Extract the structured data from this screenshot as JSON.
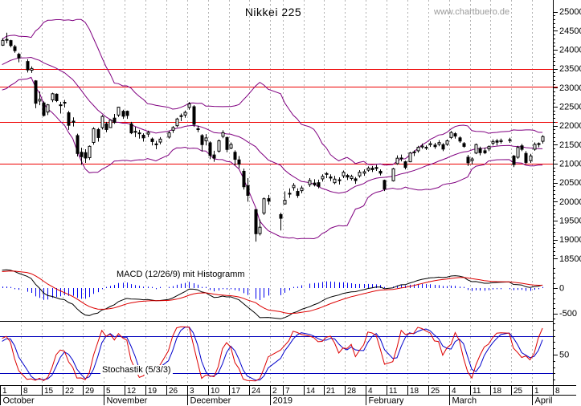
{
  "title": "Nikkei 225",
  "watermark": "www.chartbuero.de",
  "chart_data": {
    "type": "candlestick",
    "title": "Nikkei 225",
    "legend_position": "none",
    "grid": "weekly-vertical-dashed",
    "colors": {
      "grid": "#b4b4b4",
      "level_line": "#ee0000",
      "bollinger": "#800080",
      "candle_up_fill": "#ffffff",
      "candle_down_fill": "#000000",
      "candle_outline": "#000000",
      "macd_line": "#000000",
      "macd_signal": "#dd0000",
      "macd_histogram": "#0000ee",
      "stoch_k": "#dd0000",
      "stoch_d": "#0000cc",
      "stoch_reference": "#0000bb",
      "axis": "#000000"
    },
    "panels": {
      "price": {
        "ylim": [
          18500,
          25000
        ],
        "y_ticks": [
          25000,
          24500,
          24000,
          23500,
          23000,
          22500,
          22000,
          21500,
          21000,
          20500,
          20000,
          19500,
          19000,
          18500
        ],
        "minor_tick_step": 100,
        "support_resistance_levels": [
          23500,
          23030,
          22100,
          21000
        ],
        "bollinger": {
          "period": 20,
          "stddev": 2
        },
        "ohlc": [
          [
            "2018-10-01",
            24120,
            24306,
            24100,
            24246
          ],
          [
            "2018-10-02",
            24270,
            24448,
            24170,
            24271
          ],
          [
            "2018-10-03",
            24240,
            24260,
            24062,
            24111
          ],
          [
            "2018-10-04",
            24080,
            24130,
            23920,
            23976
          ],
          [
            "2018-10-05",
            23880,
            23920,
            23670,
            23784
          ],
          [
            "2018-10-09",
            23690,
            23750,
            23400,
            23470
          ],
          [
            "2018-10-10",
            23460,
            23560,
            23390,
            23506
          ],
          [
            "2018-10-11",
            23180,
            23200,
            22460,
            22591
          ],
          [
            "2018-10-12",
            22650,
            22900,
            22540,
            22695
          ],
          [
            "2018-10-15",
            22600,
            22640,
            22240,
            22271
          ],
          [
            "2018-10-16",
            22360,
            22570,
            22280,
            22549
          ],
          [
            "2018-10-17",
            22680,
            22870,
            22620,
            22841
          ],
          [
            "2018-10-18",
            22830,
            22850,
            22620,
            22658
          ],
          [
            "2018-10-19",
            22550,
            22630,
            22320,
            22532
          ],
          [
            "2018-10-22",
            22600,
            22680,
            22480,
            22615
          ],
          [
            "2018-10-23",
            22340,
            22390,
            21890,
            22010
          ],
          [
            "2018-10-24",
            22120,
            22220,
            21980,
            22091
          ],
          [
            "2018-10-25",
            21740,
            21790,
            21190,
            21268
          ],
          [
            "2018-10-26",
            21300,
            21420,
            20970,
            21185
          ],
          [
            "2018-10-29",
            21290,
            21380,
            21020,
            21149
          ],
          [
            "2018-10-30",
            21160,
            21480,
            21100,
            21457
          ],
          [
            "2018-10-31",
            21560,
            21960,
            21500,
            21920
          ],
          [
            "2018-11-01",
            21900,
            21940,
            21580,
            21688
          ],
          [
            "2018-11-02",
            21950,
            22280,
            21900,
            22244
          ],
          [
            "2018-11-05",
            22050,
            22100,
            21830,
            21899
          ],
          [
            "2018-11-06",
            21950,
            22160,
            21940,
            22147
          ],
          [
            "2018-11-07",
            22200,
            22310,
            22050,
            22086
          ],
          [
            "2018-11-08",
            22280,
            22500,
            22230,
            22487
          ],
          [
            "2018-11-09",
            22380,
            22420,
            22180,
            22250
          ],
          [
            "2018-11-12",
            22380,
            22400,
            22180,
            22269
          ],
          [
            "2018-11-13",
            22050,
            22100,
            21780,
            21811
          ],
          [
            "2018-11-14",
            21850,
            21970,
            21700,
            21846
          ],
          [
            "2018-11-15",
            21810,
            21890,
            21660,
            21803
          ],
          [
            "2018-11-16",
            21750,
            21800,
            21580,
            21680
          ],
          [
            "2018-11-19",
            21780,
            21870,
            21700,
            21821
          ],
          [
            "2018-11-20",
            21650,
            21690,
            21480,
            21583
          ],
          [
            "2018-11-21",
            21520,
            21600,
            21380,
            21507
          ],
          [
            "2018-11-22",
            21570,
            21700,
            21510,
            21647
          ],
          [
            "2018-11-26",
            21700,
            21860,
            21660,
            21812
          ],
          [
            "2018-11-27",
            21880,
            21990,
            21810,
            21952
          ],
          [
            "2018-11-28",
            22000,
            22210,
            21960,
            22177
          ],
          [
            "2018-11-29",
            22250,
            22320,
            22120,
            22263
          ],
          [
            "2018-11-30",
            22280,
            22400,
            22210,
            22351
          ],
          [
            "2018-12-03",
            22480,
            22620,
            22420,
            22574
          ],
          [
            "2018-12-04",
            22500,
            22540,
            21970,
            22036
          ],
          [
            "2018-12-05",
            21900,
            22000,
            21830,
            21919
          ],
          [
            "2018-12-06",
            21740,
            21780,
            21320,
            21502
          ],
          [
            "2018-12-07",
            21600,
            21780,
            21480,
            21679
          ],
          [
            "2018-12-10",
            21550,
            21590,
            21120,
            21220
          ],
          [
            "2018-12-11",
            21230,
            21340,
            21050,
            21148
          ],
          [
            "2018-12-12",
            21330,
            21640,
            21290,
            21602
          ],
          [
            "2018-12-13",
            21720,
            21880,
            21670,
            21816
          ],
          [
            "2018-12-14",
            21690,
            21710,
            21300,
            21375
          ],
          [
            "2018-12-17",
            21410,
            21560,
            21380,
            21507
          ],
          [
            "2018-12-18",
            21300,
            21350,
            20950,
            21115
          ],
          [
            "2018-12-19",
            21100,
            21200,
            20880,
            20987
          ],
          [
            "2018-12-20",
            20800,
            20870,
            20320,
            20393
          ],
          [
            "2018-12-21",
            20420,
            20620,
            20000,
            20166
          ],
          [
            "2018-12-25",
            19790,
            19800,
            18948,
            19156
          ],
          [
            "2018-12-26",
            19160,
            19530,
            19110,
            19327
          ],
          [
            "2018-12-27",
            19700,
            20110,
            19650,
            20077
          ],
          [
            "2018-12-28",
            20080,
            20180,
            19920,
            20015
          ],
          [
            "2019-01-04",
            19660,
            19710,
            19241,
            19562
          ],
          [
            "2019-01-07",
            19940,
            20270,
            19920,
            20038
          ],
          [
            "2019-01-08",
            20220,
            20350,
            20100,
            20204
          ],
          [
            "2019-01-09",
            20370,
            20490,
            20290,
            20427
          ],
          [
            "2019-01-10",
            20270,
            20350,
            20100,
            20163
          ],
          [
            "2019-01-11",
            20290,
            20420,
            20220,
            20360
          ],
          [
            "2019-01-15",
            20450,
            20620,
            20390,
            20555
          ],
          [
            "2019-01-16",
            20490,
            20590,
            20400,
            20443
          ],
          [
            "2019-01-17",
            20500,
            20580,
            20350,
            20402
          ],
          [
            "2019-01-18",
            20600,
            20720,
            20530,
            20666
          ],
          [
            "2019-01-21",
            20740,
            20780,
            20620,
            20719
          ],
          [
            "2019-01-22",
            20650,
            20720,
            20540,
            20622
          ],
          [
            "2019-01-23",
            20500,
            20680,
            20460,
            20593
          ],
          [
            "2019-01-24",
            20560,
            20640,
            20450,
            20575
          ],
          [
            "2019-01-25",
            20680,
            20820,
            20620,
            20774
          ],
          [
            "2019-01-28",
            20690,
            20730,
            20570,
            20649
          ],
          [
            "2019-01-29",
            20610,
            20710,
            20560,
            20664
          ],
          [
            "2019-01-30",
            20600,
            20650,
            20470,
            20557
          ],
          [
            "2019-01-31",
            20680,
            20830,
            20630,
            20773
          ],
          [
            "2019-02-01",
            20750,
            20850,
            20680,
            20788
          ],
          [
            "2019-02-04",
            20830,
            20930,
            20790,
            20884
          ],
          [
            "2019-02-05",
            20880,
            20940,
            20780,
            20844
          ],
          [
            "2019-02-06",
            20900,
            20970,
            20810,
            20874
          ],
          [
            "2019-02-07",
            20800,
            20850,
            20690,
            20751
          ],
          [
            "2019-02-08",
            20560,
            20580,
            20280,
            20333
          ],
          [
            "2019-02-12",
            20550,
            20890,
            20530,
            20864
          ],
          [
            "2019-02-13",
            21000,
            21220,
            20970,
            21144
          ],
          [
            "2019-02-14",
            21150,
            21240,
            21060,
            21139
          ],
          [
            "2019-02-15",
            21050,
            21080,
            20850,
            20901
          ],
          [
            "2019-02-18",
            21050,
            21310,
            21040,
            21282
          ],
          [
            "2019-02-19",
            21310,
            21350,
            21200,
            21302
          ],
          [
            "2019-02-20",
            21340,
            21470,
            21290,
            21431
          ],
          [
            "2019-02-21",
            21440,
            21530,
            21390,
            21464
          ],
          [
            "2019-02-22",
            21430,
            21480,
            21360,
            21425
          ],
          [
            "2019-02-25",
            21500,
            21590,
            21440,
            21528
          ],
          [
            "2019-02-26",
            21490,
            21550,
            21390,
            21449
          ],
          [
            "2019-02-27",
            21510,
            21620,
            21460,
            21556
          ],
          [
            "2019-02-28",
            21500,
            21540,
            21330,
            21385
          ],
          [
            "2019-03-01",
            21510,
            21640,
            21470,
            21602
          ],
          [
            "2019-03-04",
            21690,
            21860,
            21650,
            21822
          ],
          [
            "2019-03-05",
            21790,
            21830,
            21660,
            21726
          ],
          [
            "2019-03-06",
            21680,
            21720,
            21550,
            21596
          ],
          [
            "2019-03-07",
            21530,
            21570,
            21420,
            21456
          ],
          [
            "2019-03-08",
            21170,
            21230,
            20940,
            21025
          ],
          [
            "2019-03-11",
            21080,
            21170,
            20980,
            21125
          ],
          [
            "2019-03-12",
            21280,
            21530,
            21250,
            21503
          ],
          [
            "2019-03-13",
            21400,
            21450,
            21220,
            21290
          ],
          [
            "2019-03-14",
            21340,
            21420,
            21250,
            21287
          ],
          [
            "2019-03-15",
            21390,
            21480,
            21330,
            21450
          ],
          [
            "2019-03-18",
            21540,
            21640,
            21480,
            21584
          ],
          [
            "2019-03-19",
            21600,
            21650,
            21480,
            21566
          ],
          [
            "2019-03-20",
            21580,
            21660,
            21530,
            21608
          ],
          [
            "2019-03-22",
            21630,
            21680,
            21550,
            21627
          ],
          [
            "2019-03-25",
            21200,
            21230,
            20910,
            20977
          ],
          [
            "2019-03-26",
            21170,
            21470,
            21130,
            21428
          ],
          [
            "2019-03-27",
            21470,
            21520,
            21330,
            21378
          ],
          [
            "2019-03-28",
            21270,
            21330,
            20990,
            21033
          ],
          [
            "2019-03-29",
            21080,
            21260,
            21020,
            21205
          ],
          [
            "2019-04-01",
            21380,
            21560,
            21340,
            21509
          ],
          [
            "2019-04-02",
            21530,
            21560,
            21430,
            21505
          ],
          [
            "2019-04-03",
            21590,
            21750,
            21530,
            21713
          ]
        ]
      },
      "macd": {
        "label": "MACD (12/26/9) mit Histogramm",
        "fast": 12,
        "slow": 26,
        "signal": 9,
        "y_ticks": [
          0,
          -500
        ],
        "minor_tick_step": 100
      },
      "stochastic": {
        "label": "Stochastik (5/3/3)",
        "k_period": 5,
        "k_smoothing": 3,
        "d_period": 3,
        "reference_levels": [
          80,
          20
        ],
        "y_ticks": [
          50
        ],
        "minor_tick_step": 10
      }
    },
    "x_axis": {
      "weeks": [
        [
          "1",
          5
        ],
        [
          "8",
          5
        ],
        [
          "15",
          5
        ],
        [
          "22",
          5
        ],
        [
          "29",
          5
        ],
        [
          "5",
          5
        ],
        [
          "12",
          5
        ],
        [
          "19",
          5
        ],
        [
          "26",
          5
        ],
        [
          "3",
          5
        ],
        [
          "10",
          5
        ],
        [
          "17",
          5
        ],
        [
          "24",
          5
        ],
        [
          "2",
          3
        ],
        [
          "7",
          5
        ],
        [
          "14",
          5
        ],
        [
          "21",
          5
        ],
        [
          "28",
          5
        ],
        [
          "4",
          5
        ],
        [
          "11",
          5
        ],
        [
          "18",
          5
        ],
        [
          "25",
          5
        ],
        [
          "4",
          5
        ],
        [
          "11",
          5
        ],
        [
          "18",
          5
        ],
        [
          "25",
          5
        ],
        [
          "1",
          5
        ],
        [
          "8",
          0
        ]
      ],
      "months": [
        [
          "October",
          5
        ],
        [
          "November",
          4
        ],
        [
          "December",
          4
        ],
        [
          "2019",
          5
        ],
        [
          "February",
          4
        ],
        [
          "March",
          4
        ],
        [
          "April",
          2
        ]
      ]
    }
  }
}
